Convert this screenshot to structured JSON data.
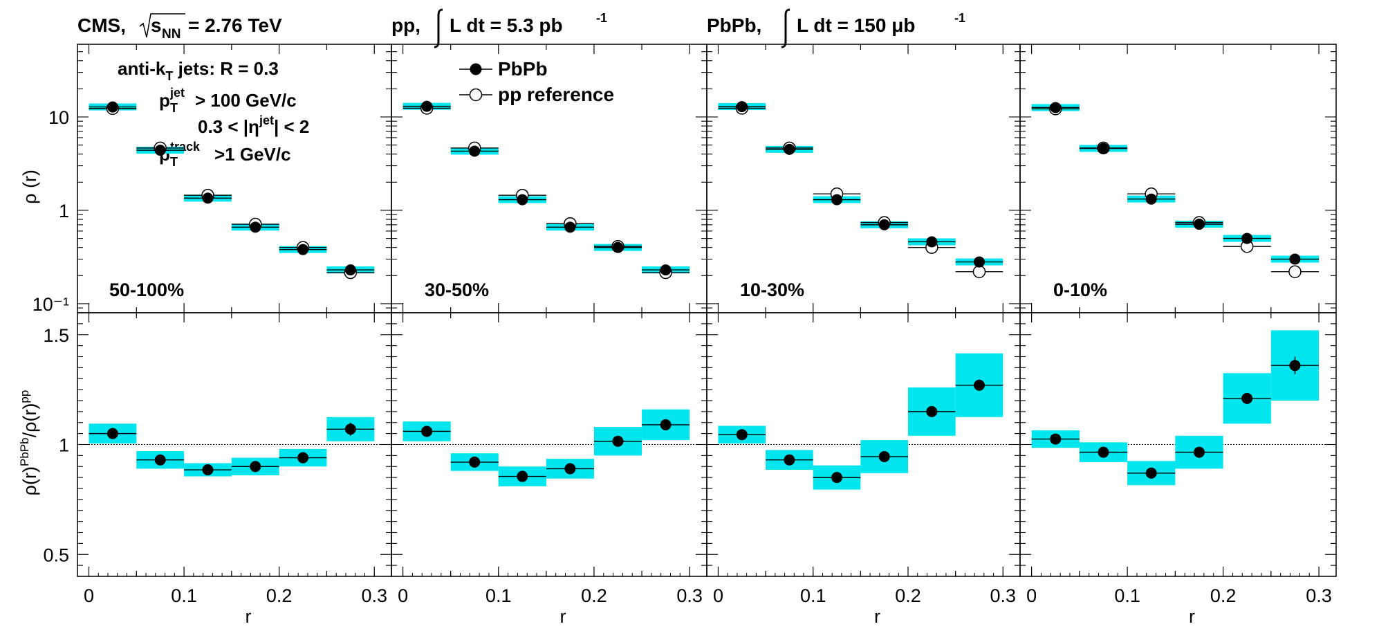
{
  "header": {
    "cms": "CMS,",
    "sqrt_sub": "NN",
    "energy": "= 2.76 TeV",
    "pp_prefix": "pp,",
    "pp_lumi": "L dt = 5.3 pb",
    "pp_lumi_exp": "-1",
    "pbpb_prefix": "PbPb,",
    "pbpb_lumi": "L dt = 150 μb",
    "pbpb_lumi_exp": "-1"
  },
  "annotations": {
    "jets": "anti-k",
    "jets_sub": "T",
    "jets_rest": " jets: R = 0.3",
    "pt_cut": "> 100 GeV/c",
    "pt_sup": "jet",
    "eta_cut_a": "0.3 < |η",
    "eta_sup": "jet",
    "eta_cut_b": "| < 2",
    "track_cut": ">1 GeV/c",
    "track_sup": "track"
  },
  "legend": {
    "pbpb": "PbPb",
    "pp": "pp reference"
  },
  "colors": {
    "systematic_band": "#00e5ee",
    "marker": "#000000",
    "axis": "#000000"
  },
  "chart_data": {
    "type": "scatter",
    "xlabel": "r",
    "ylabel_top": "ρ (r)",
    "ylabel_bottom": "ρ(r)PbPb/ρ(r)pp",
    "x_edges": [
      0,
      0.05,
      0.1,
      0.15,
      0.2,
      0.25,
      0.3
    ],
    "x_centers": [
      0.025,
      0.075,
      0.125,
      0.175,
      0.225,
      0.275
    ],
    "x_ticks": [
      "0",
      "0.1",
      "0.2",
      "0.3"
    ],
    "top_ylim": [
      0.08,
      60
    ],
    "top_yscale": "log",
    "top_ytick_labels": [
      "10⁻¹",
      "1",
      "10"
    ],
    "bottom_ylim": [
      0.4,
      1.6
    ],
    "bottom_ytick_labels": [
      "0.5",
      "1",
      "1.5"
    ],
    "panels": [
      {
        "centrality": "50-100%",
        "pbpb": [
          12.8,
          4.4,
          1.35,
          0.66,
          0.38,
          0.23
        ],
        "pp": [
          12.3,
          4.65,
          1.45,
          0.71,
          0.4,
          0.215
        ],
        "ratio": [
          1.05,
          0.93,
          0.885,
          0.9,
          0.94,
          1.07
        ],
        "ratio_err": [
          0.0,
          0.0,
          0.0,
          0.0,
          0.0,
          0.03
        ],
        "ratio_sys": [
          0.045,
          0.04,
          0.03,
          0.04,
          0.04,
          0.055
        ]
      },
      {
        "centrality": "30-50%",
        "pbpb": [
          13.0,
          4.3,
          1.3,
          0.66,
          0.4,
          0.23
        ],
        "pp": [
          12.4,
          4.65,
          1.45,
          0.72,
          0.41,
          0.215
        ],
        "ratio": [
          1.06,
          0.92,
          0.855,
          0.89,
          1.015,
          1.09
        ],
        "ratio_err": [
          0.0,
          0.0,
          0.0,
          0.0,
          0.0,
          0.02
        ],
        "ratio_sys": [
          0.045,
          0.04,
          0.045,
          0.045,
          0.065,
          0.07
        ]
      },
      {
        "centrality": "10-30%",
        "pbpb": [
          12.9,
          4.5,
          1.3,
          0.7,
          0.46,
          0.28
        ],
        "pp": [
          12.4,
          4.65,
          1.5,
          0.74,
          0.4,
          0.22
        ],
        "ratio": [
          1.045,
          0.93,
          0.85,
          0.945,
          1.15,
          1.27
        ],
        "ratio_err": [
          0.0,
          0.0,
          0.0,
          0.0,
          0.0,
          0.02
        ],
        "ratio_sys": [
          0.04,
          0.045,
          0.055,
          0.075,
          0.11,
          0.145
        ]
      },
      {
        "centrality": "0-10%",
        "pbpb": [
          12.6,
          4.6,
          1.32,
          0.71,
          0.5,
          0.3
        ],
        "pp": [
          12.2,
          4.65,
          1.5,
          0.74,
          0.41,
          0.22
        ],
        "ratio": [
          1.025,
          0.965,
          0.87,
          0.965,
          1.21,
          1.36
        ],
        "ratio_err": [
          0.0,
          0.0,
          0.0,
          0.0,
          0.0,
          0.04
        ],
        "ratio_sys": [
          0.04,
          0.045,
          0.055,
          0.075,
          0.115,
          0.16
        ]
      }
    ]
  }
}
